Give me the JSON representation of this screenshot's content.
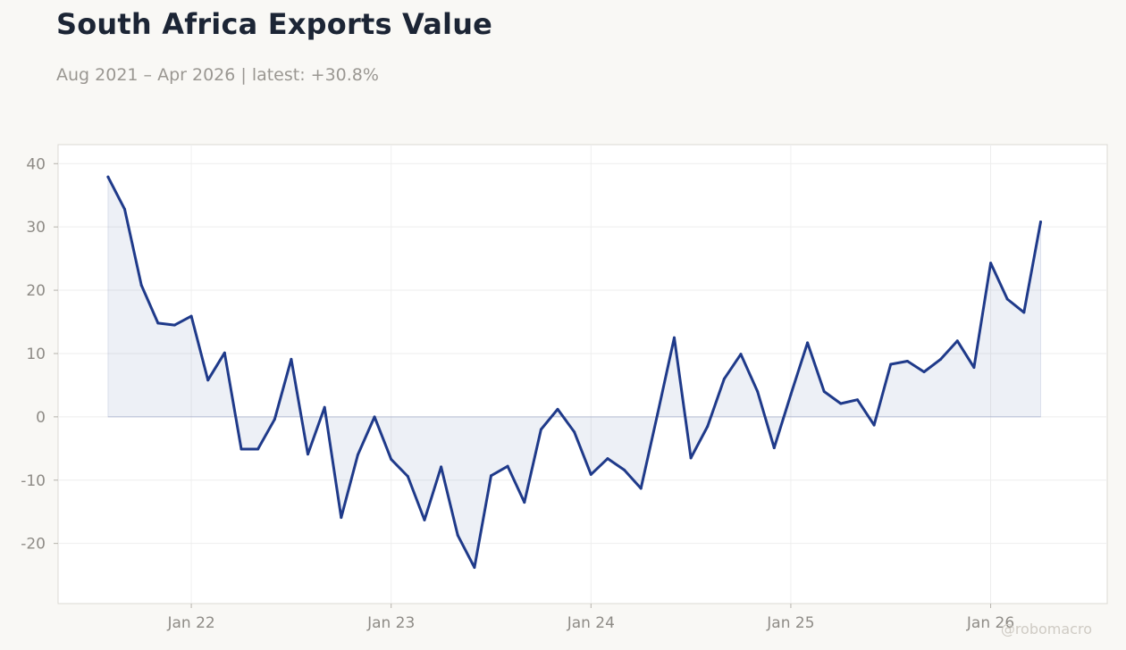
{
  "title": "South Africa Exports Value",
  "subtitle": "Aug 2021 – Apr 2026 | latest: +30.8%",
  "watermark": "@robomacro",
  "colors": {
    "line": "#1f3a8a",
    "fill": "#1f3a8a",
    "background": "#f9f8f5",
    "plot_background": "#ffffff",
    "grid": "#eeeeee",
    "axis_text": "#8e8b86"
  },
  "chart_data": {
    "type": "area",
    "title": "South Africa Exports Value",
    "xlabel": "",
    "ylabel": "",
    "x_ticks": [
      {
        "label": "Jan 22",
        "date": "2022-01"
      },
      {
        "label": "Jan 23",
        "date": "2023-01"
      },
      {
        "label": "Jan 24",
        "date": "2024-01"
      },
      {
        "label": "Jan 25",
        "date": "2025-01"
      },
      {
        "label": "Jan 26",
        "date": "2026-01"
      }
    ],
    "y_ticks": [
      -20,
      -10,
      0,
      10,
      20,
      30,
      40
    ],
    "ylim": [
      -29.5,
      43
    ],
    "xlim": [
      "2021-05",
      "2026-08"
    ],
    "grid": true,
    "legend": "none",
    "series": [
      {
        "x": [
          "2021-08",
          "2021-09",
          "2021-10",
          "2021-11",
          "2021-12",
          "2022-01",
          "2022-02",
          "2022-03",
          "2022-04",
          "2022-05",
          "2022-06",
          "2022-07",
          "2022-08",
          "2022-09",
          "2022-10",
          "2022-11",
          "2022-12",
          "2023-01",
          "2023-02",
          "2023-03",
          "2023-04",
          "2023-05",
          "2023-06",
          "2023-07",
          "2023-08",
          "2023-09",
          "2023-10",
          "2023-11",
          "2023-12",
          "2024-01",
          "2024-02",
          "2024-03",
          "2024-04",
          "2024-05",
          "2024-06",
          "2024-07",
          "2024-08",
          "2024-09",
          "2024-10",
          "2024-11",
          "2024-12",
          "2025-01",
          "2025-02",
          "2025-03",
          "2025-04",
          "2025-05",
          "2025-06",
          "2025-07",
          "2025-08",
          "2025-09",
          "2025-10",
          "2025-11",
          "2025-12",
          "2026-01",
          "2026-02",
          "2026-03",
          "2026-04"
        ],
        "values": [
          37.9,
          32.8,
          20.8,
          14.8,
          14.5,
          15.9,
          5.8,
          10.1,
          -5.1,
          -5.1,
          -0.4,
          9.1,
          -5.9,
          1.5,
          -15.9,
          -6.0,
          0.0,
          -6.7,
          -9.4,
          -16.3,
          -7.9,
          -18.7,
          -23.8,
          -9.3,
          -7.8,
          -13.5,
          -2.0,
          1.2,
          -2.4,
          -9.1,
          -6.6,
          -8.4,
          -11.3,
          0.5,
          12.5,
          -6.5,
          -1.5,
          6.0,
          9.9,
          4.0,
          -4.9,
          3.5,
          11.7,
          4.0,
          2.1,
          2.7,
          -1.3,
          8.3,
          8.8,
          7.1,
          9.1,
          12.0,
          7.8,
          24.3,
          18.6,
          16.5,
          30.8
        ]
      }
    ]
  }
}
